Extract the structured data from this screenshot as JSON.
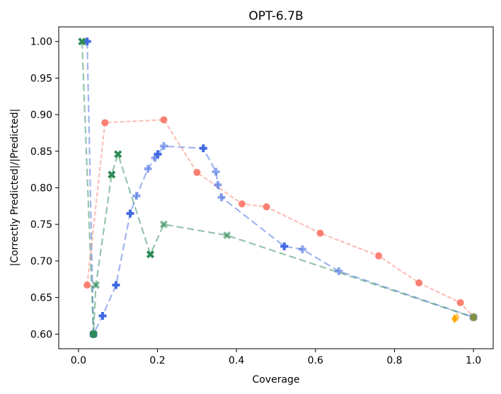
{
  "chart_data": {
    "type": "scatter",
    "title": "OPT-6.7B",
    "xlabel": "Coverage",
    "ylabel": "|Correctly Predicted|/|Predicted|",
    "xlim": [
      -0.05,
      1.05
    ],
    "ylim": [
      0.58,
      1.02
    ],
    "xticks": [
      0.0,
      0.2,
      0.4,
      0.6,
      0.8,
      1.0
    ],
    "xtick_labels": [
      "0.0",
      "0.2",
      "0.4",
      "0.6",
      "0.8",
      "1.0"
    ],
    "yticks": [
      0.6,
      0.65,
      0.7,
      0.75,
      0.8,
      0.85,
      0.9,
      0.95,
      1.0
    ],
    "ytick_labels": [
      "0.60",
      "0.65",
      "0.70",
      "0.75",
      "0.80",
      "0.85",
      "0.90",
      "0.95",
      "1.00"
    ],
    "grid": false,
    "series": [
      {
        "name": "blue-plus",
        "color": "#4169e1",
        "marker": "plus",
        "linestyle": "dashed-long",
        "points": [
          {
            "x": 0.022,
            "y": 1.0,
            "alpha": 1.0
          },
          {
            "x": 0.038,
            "y": 0.6,
            "alpha": 1.0
          },
          {
            "x": 0.061,
            "y": 0.625,
            "alpha": 1.0
          },
          {
            "x": 0.095,
            "y": 0.667,
            "alpha": 1.0
          },
          {
            "x": 0.131,
            "y": 0.765,
            "alpha": 1.0
          },
          {
            "x": 0.147,
            "y": 0.789,
            "alpha": 0.6
          },
          {
            "x": 0.176,
            "y": 0.826,
            "alpha": 0.6
          },
          {
            "x": 0.194,
            "y": 0.841,
            "alpha": 0.6
          },
          {
            "x": 0.201,
            "y": 0.846,
            "alpha": 1.0
          },
          {
            "x": 0.216,
            "y": 0.857,
            "alpha": 0.6
          },
          {
            "x": 0.316,
            "y": 0.854,
            "alpha": 1.0
          },
          {
            "x": 0.348,
            "y": 0.822,
            "alpha": 0.6
          },
          {
            "x": 0.353,
            "y": 0.804,
            "alpha": 0.6
          },
          {
            "x": 0.362,
            "y": 0.787,
            "alpha": 0.6
          },
          {
            "x": 0.521,
            "y": 0.72,
            "alpha": 1.0
          },
          {
            "x": 0.567,
            "y": 0.716,
            "alpha": 0.6
          },
          {
            "x": 0.659,
            "y": 0.686,
            "alpha": 0.6
          },
          {
            "x": 1.0,
            "y": 0.623,
            "alpha": 0.6
          }
        ]
      },
      {
        "name": "green-x",
        "color": "#2e8b57",
        "marker": "x",
        "linestyle": "dashed-long",
        "points": [
          {
            "x": 0.009,
            "y": 1.0,
            "alpha": 1.0
          },
          {
            "x": 0.038,
            "y": 0.6,
            "alpha": 1.0
          },
          {
            "x": 0.044,
            "y": 0.667,
            "alpha": 0.6
          },
          {
            "x": 0.084,
            "y": 0.818,
            "alpha": 1.0
          },
          {
            "x": 0.1,
            "y": 0.846,
            "alpha": 1.0
          },
          {
            "x": 0.182,
            "y": 0.709,
            "alpha": 1.0
          },
          {
            "x": 0.216,
            "y": 0.75,
            "alpha": 0.6
          },
          {
            "x": 0.376,
            "y": 0.735,
            "alpha": 0.6
          },
          {
            "x": 1.0,
            "y": 0.623,
            "alpha": 0.6
          }
        ]
      },
      {
        "name": "red-circle",
        "color": "#fa8072",
        "marker": "circle",
        "linestyle": "dashed-short",
        "points": [
          {
            "x": 0.022,
            "y": 0.667,
            "alpha": 1.0
          },
          {
            "x": 0.067,
            "y": 0.889,
            "alpha": 1.0
          },
          {
            "x": 0.216,
            "y": 0.893,
            "alpha": 1.0
          },
          {
            "x": 0.3,
            "y": 0.821,
            "alpha": 1.0
          },
          {
            "x": 0.414,
            "y": 0.778,
            "alpha": 1.0
          },
          {
            "x": 0.476,
            "y": 0.774,
            "alpha": 1.0
          },
          {
            "x": 0.612,
            "y": 0.738,
            "alpha": 1.0
          },
          {
            "x": 0.76,
            "y": 0.707,
            "alpha": 1.0
          },
          {
            "x": 0.862,
            "y": 0.67,
            "alpha": 1.0
          },
          {
            "x": 0.967,
            "y": 0.643,
            "alpha": 1.0
          },
          {
            "x": 1.0,
            "y": 0.623,
            "alpha": 1.0
          }
        ]
      },
      {
        "name": "orange-diamond",
        "color": "#ffa500",
        "marker": "diamond",
        "linestyle": "none",
        "points": [
          {
            "x": 0.952,
            "y": 0.621,
            "alpha": 1.0
          },
          {
            "x": 0.958,
            "y": 0.623,
            "alpha": 0.6
          },
          {
            "x": 1.0,
            "y": 0.623,
            "alpha": 0.8
          }
        ]
      },
      {
        "name": "teal-hexagon",
        "color": "#2e8b57",
        "marker": "hexagon",
        "linestyle": "none",
        "points": [
          {
            "x": 0.038,
            "y": 0.6,
            "alpha": 0.9
          },
          {
            "x": 1.0,
            "y": 0.623,
            "alpha": 0.6
          }
        ]
      }
    ]
  }
}
